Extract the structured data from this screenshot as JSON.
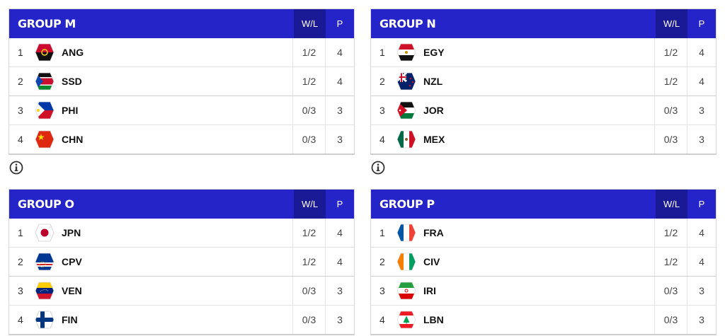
{
  "headers": {
    "wl": "W/L",
    "p": "P"
  },
  "groups": [
    {
      "title": "GROUP M",
      "teams": [
        {
          "rank": "1",
          "code": "ANG",
          "wl": "1/2",
          "p": "4",
          "flag": "angola"
        },
        {
          "rank": "2",
          "code": "SSD",
          "wl": "1/2",
          "p": "4",
          "flag": "south-sudan"
        },
        {
          "rank": "3",
          "code": "PHI",
          "wl": "0/3",
          "p": "3",
          "flag": "philippines"
        },
        {
          "rank": "4",
          "code": "CHN",
          "wl": "0/3",
          "p": "3",
          "flag": "china"
        }
      ]
    },
    {
      "title": "GROUP N",
      "teams": [
        {
          "rank": "1",
          "code": "EGY",
          "wl": "1/2",
          "p": "4",
          "flag": "egypt"
        },
        {
          "rank": "2",
          "code": "NZL",
          "wl": "1/2",
          "p": "4",
          "flag": "new-zealand"
        },
        {
          "rank": "3",
          "code": "JOR",
          "wl": "0/3",
          "p": "3",
          "flag": "jordan"
        },
        {
          "rank": "4",
          "code": "MEX",
          "wl": "0/3",
          "p": "3",
          "flag": "mexico"
        }
      ]
    },
    {
      "title": "GROUP O",
      "teams": [
        {
          "rank": "1",
          "code": "JPN",
          "wl": "1/2",
          "p": "4",
          "flag": "japan"
        },
        {
          "rank": "2",
          "code": "CPV",
          "wl": "1/2",
          "p": "4",
          "flag": "cape-verde"
        },
        {
          "rank": "3",
          "code": "VEN",
          "wl": "0/3",
          "p": "3",
          "flag": "venezuela"
        },
        {
          "rank": "4",
          "code": "FIN",
          "wl": "0/3",
          "p": "3",
          "flag": "finland"
        }
      ]
    },
    {
      "title": "GROUP P",
      "teams": [
        {
          "rank": "1",
          "code": "FRA",
          "wl": "1/2",
          "p": "4",
          "flag": "france"
        },
        {
          "rank": "2",
          "code": "CIV",
          "wl": "1/2",
          "p": "4",
          "flag": "ivory-coast"
        },
        {
          "rank": "3",
          "code": "IRI",
          "wl": "0/3",
          "p": "3",
          "flag": "iran"
        },
        {
          "rank": "4",
          "code": "LBN",
          "wl": "0/3",
          "p": "3",
          "flag": "lebanon"
        }
      ]
    }
  ],
  "colors": {
    "header": "#2424c8",
    "header_dark": "#1a1a96"
  },
  "icons": {
    "info": "info-circle-icon"
  }
}
